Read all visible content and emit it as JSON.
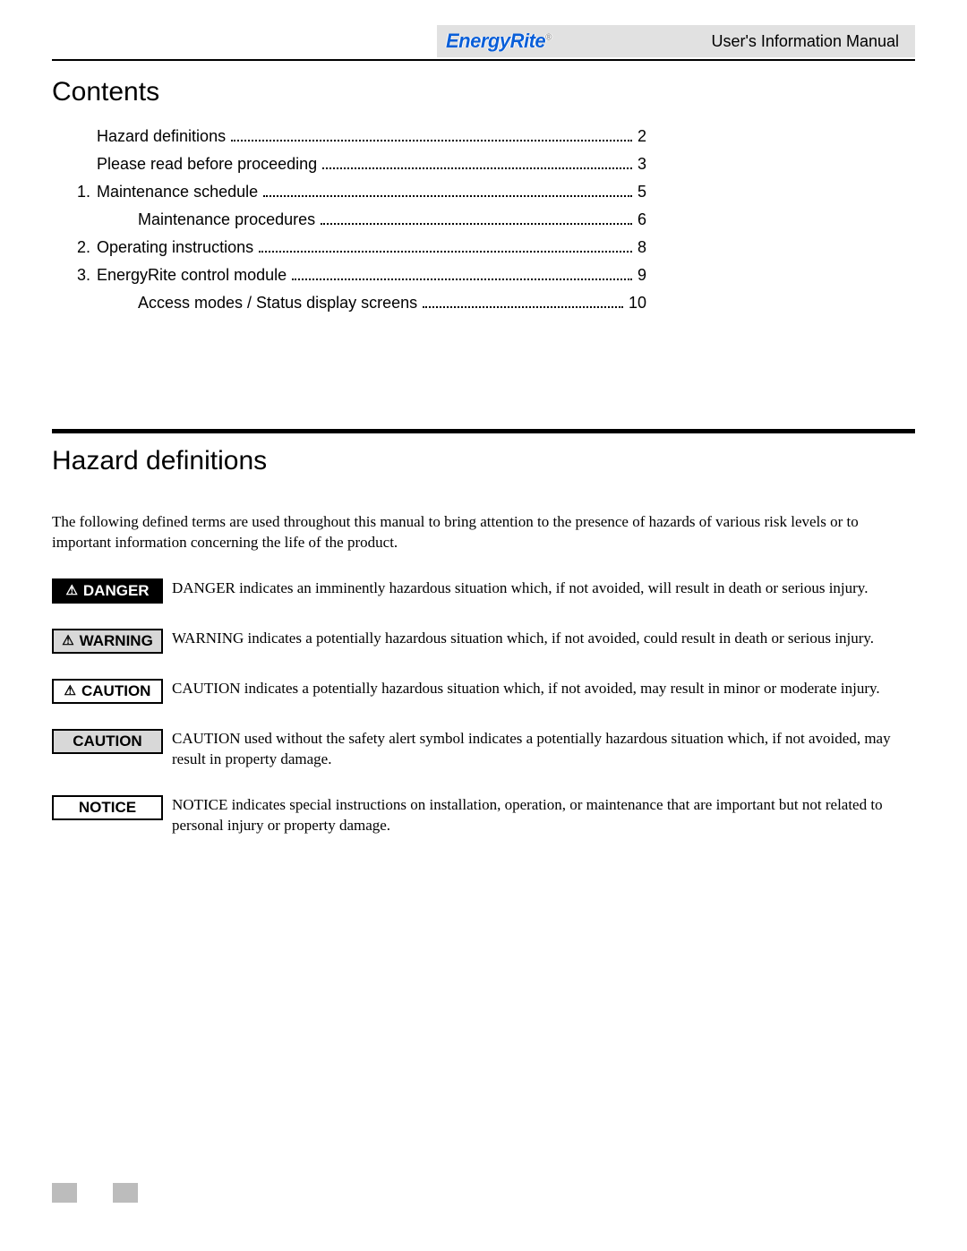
{
  "header": {
    "brand": "EnergyRite",
    "brand_reg": "®",
    "manual_title": "User's Information Manual"
  },
  "contents_heading": "Contents",
  "toc": [
    {
      "num": "",
      "label": "Hazard definitions",
      "page": "2",
      "indent": 0
    },
    {
      "num": "",
      "label": "Please read before proceeding",
      "page": "3",
      "indent": 0
    },
    {
      "num": "1.",
      "label": "Maintenance schedule",
      "page": "5",
      "indent": 0
    },
    {
      "num": "",
      "label": "Maintenance procedures",
      "page": "6",
      "indent": 1
    },
    {
      "num": "2.",
      "label": "Operating instructions",
      "page": "8",
      "indent": 0
    },
    {
      "num": "3.",
      "label": "EnergyRite control module",
      "page": "9",
      "indent": 0
    },
    {
      "num": "",
      "label": "Access modes / Status display screens",
      "page": "10",
      "indent": 1
    }
  ],
  "hazard_heading": "Hazard definitions",
  "hazard_intro": "The following defined terms are used throughout this manual to bring attention to the presence of hazards of various risk levels or to important information concerning the life of the product.",
  "hazards": [
    {
      "label": "DANGER",
      "has_triangle": true,
      "bg": "#000000",
      "fg": "#ffffff",
      "border": "#000000",
      "text": "DANGER indicates an imminently hazardous situation which, if not avoided, will result in death or serious injury."
    },
    {
      "label": "WARNING",
      "has_triangle": true,
      "bg": "#d8d8d8",
      "fg": "#000000",
      "border": "#000000",
      "text": "WARNING indicates a potentially hazardous situation which, if not avoided, could result in death or serious injury."
    },
    {
      "label": "CAUTION",
      "has_triangle": true,
      "bg": "#ffffff",
      "fg": "#000000",
      "border": "#000000",
      "text": "CAUTION indicates a potentially hazardous situation which, if not avoided, may result in minor or moderate injury."
    },
    {
      "label": "CAUTION",
      "has_triangle": false,
      "bg": "#d8d8d8",
      "fg": "#000000",
      "border": "#000000",
      "text": "CAUTION used without the safety alert symbol indicates a potentially hazardous situation which, if not avoided, may result in property damage."
    },
    {
      "label": "NOTICE",
      "has_triangle": false,
      "bg": "#ffffff",
      "fg": "#000000",
      "border": "#000000",
      "text": "NOTICE indicates special instructions on installation, operation, or maintenance that are important but not related to personal injury or property damage."
    }
  ],
  "colors": {
    "header_gray": "#e1e1e1",
    "brand_blue": "#0a5fd8",
    "footer_gray": "#bcbcbc",
    "text": "#000000",
    "background": "#ffffff"
  }
}
